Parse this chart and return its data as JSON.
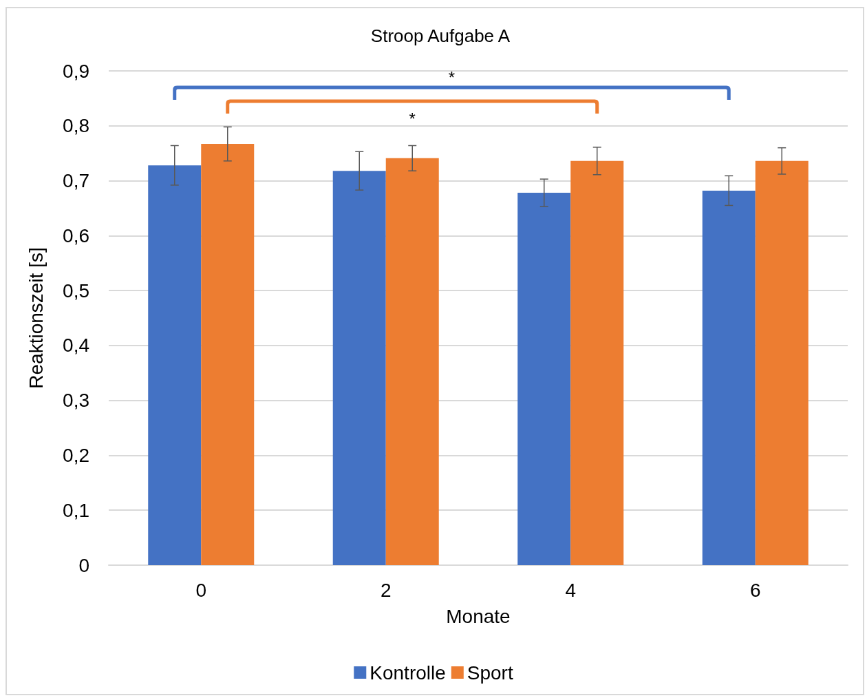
{
  "chart_data": {
    "type": "bar",
    "title": "Stroop Aufgabe A",
    "xlabel": "Monate",
    "ylabel": "Reaktionszeit [s]",
    "categories": [
      "0",
      "2",
      "4",
      "6"
    ],
    "series": [
      {
        "name": "Kontrolle",
        "color": "#4472c4",
        "values": [
          0.728,
          0.718,
          0.678,
          0.682
        ],
        "errors": [
          0.036,
          0.035,
          0.025,
          0.027
        ]
      },
      {
        "name": "Sport",
        "color": "#ed7d31",
        "values": [
          0.767,
          0.741,
          0.736,
          0.736
        ],
        "errors": [
          0.031,
          0.023,
          0.025,
          0.024
        ]
      }
    ],
    "ylim": [
      0,
      0.9
    ],
    "yticks": [
      {
        "value": 0,
        "label": "0"
      },
      {
        "value": 0.1,
        "label": "0,1"
      },
      {
        "value": 0.2,
        "label": "0,2"
      },
      {
        "value": 0.3,
        "label": "0,3"
      },
      {
        "value": 0.4,
        "label": "0,4"
      },
      {
        "value": 0.5,
        "label": "0,5"
      },
      {
        "value": 0.6,
        "label": "0,6"
      },
      {
        "value": 0.7,
        "label": "0,7"
      },
      {
        "value": 0.8,
        "label": "0,8"
      },
      {
        "value": 0.9,
        "label": "0,9"
      }
    ],
    "annotations": [
      "*",
      "*"
    ],
    "grid": "y",
    "legend": "bottom"
  }
}
